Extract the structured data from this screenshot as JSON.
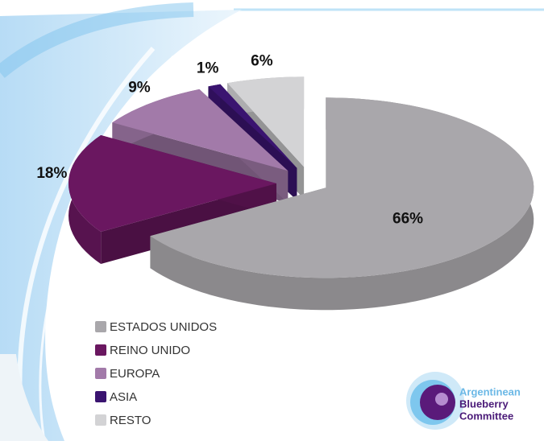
{
  "chart_data": {
    "type": "pie",
    "categories": [
      "ESTADOS UNIDOS",
      "REINO UNIDO",
      "EUROPA",
      "ASIA",
      "RESTO"
    ],
    "values": [
      66,
      18,
      9,
      1,
      6
    ],
    "value_labels": [
      "66%",
      "18%",
      "9%",
      "1%",
      "6%"
    ],
    "colors": [
      "#a9a7ab",
      "#6a1760",
      "#a27aa9",
      "#3a1470",
      "#d3d3d5"
    ],
    "legend": "bottom-left"
  },
  "logo": {
    "lines": [
      "Argentinean",
      "Blueberry",
      "Committee"
    ]
  }
}
